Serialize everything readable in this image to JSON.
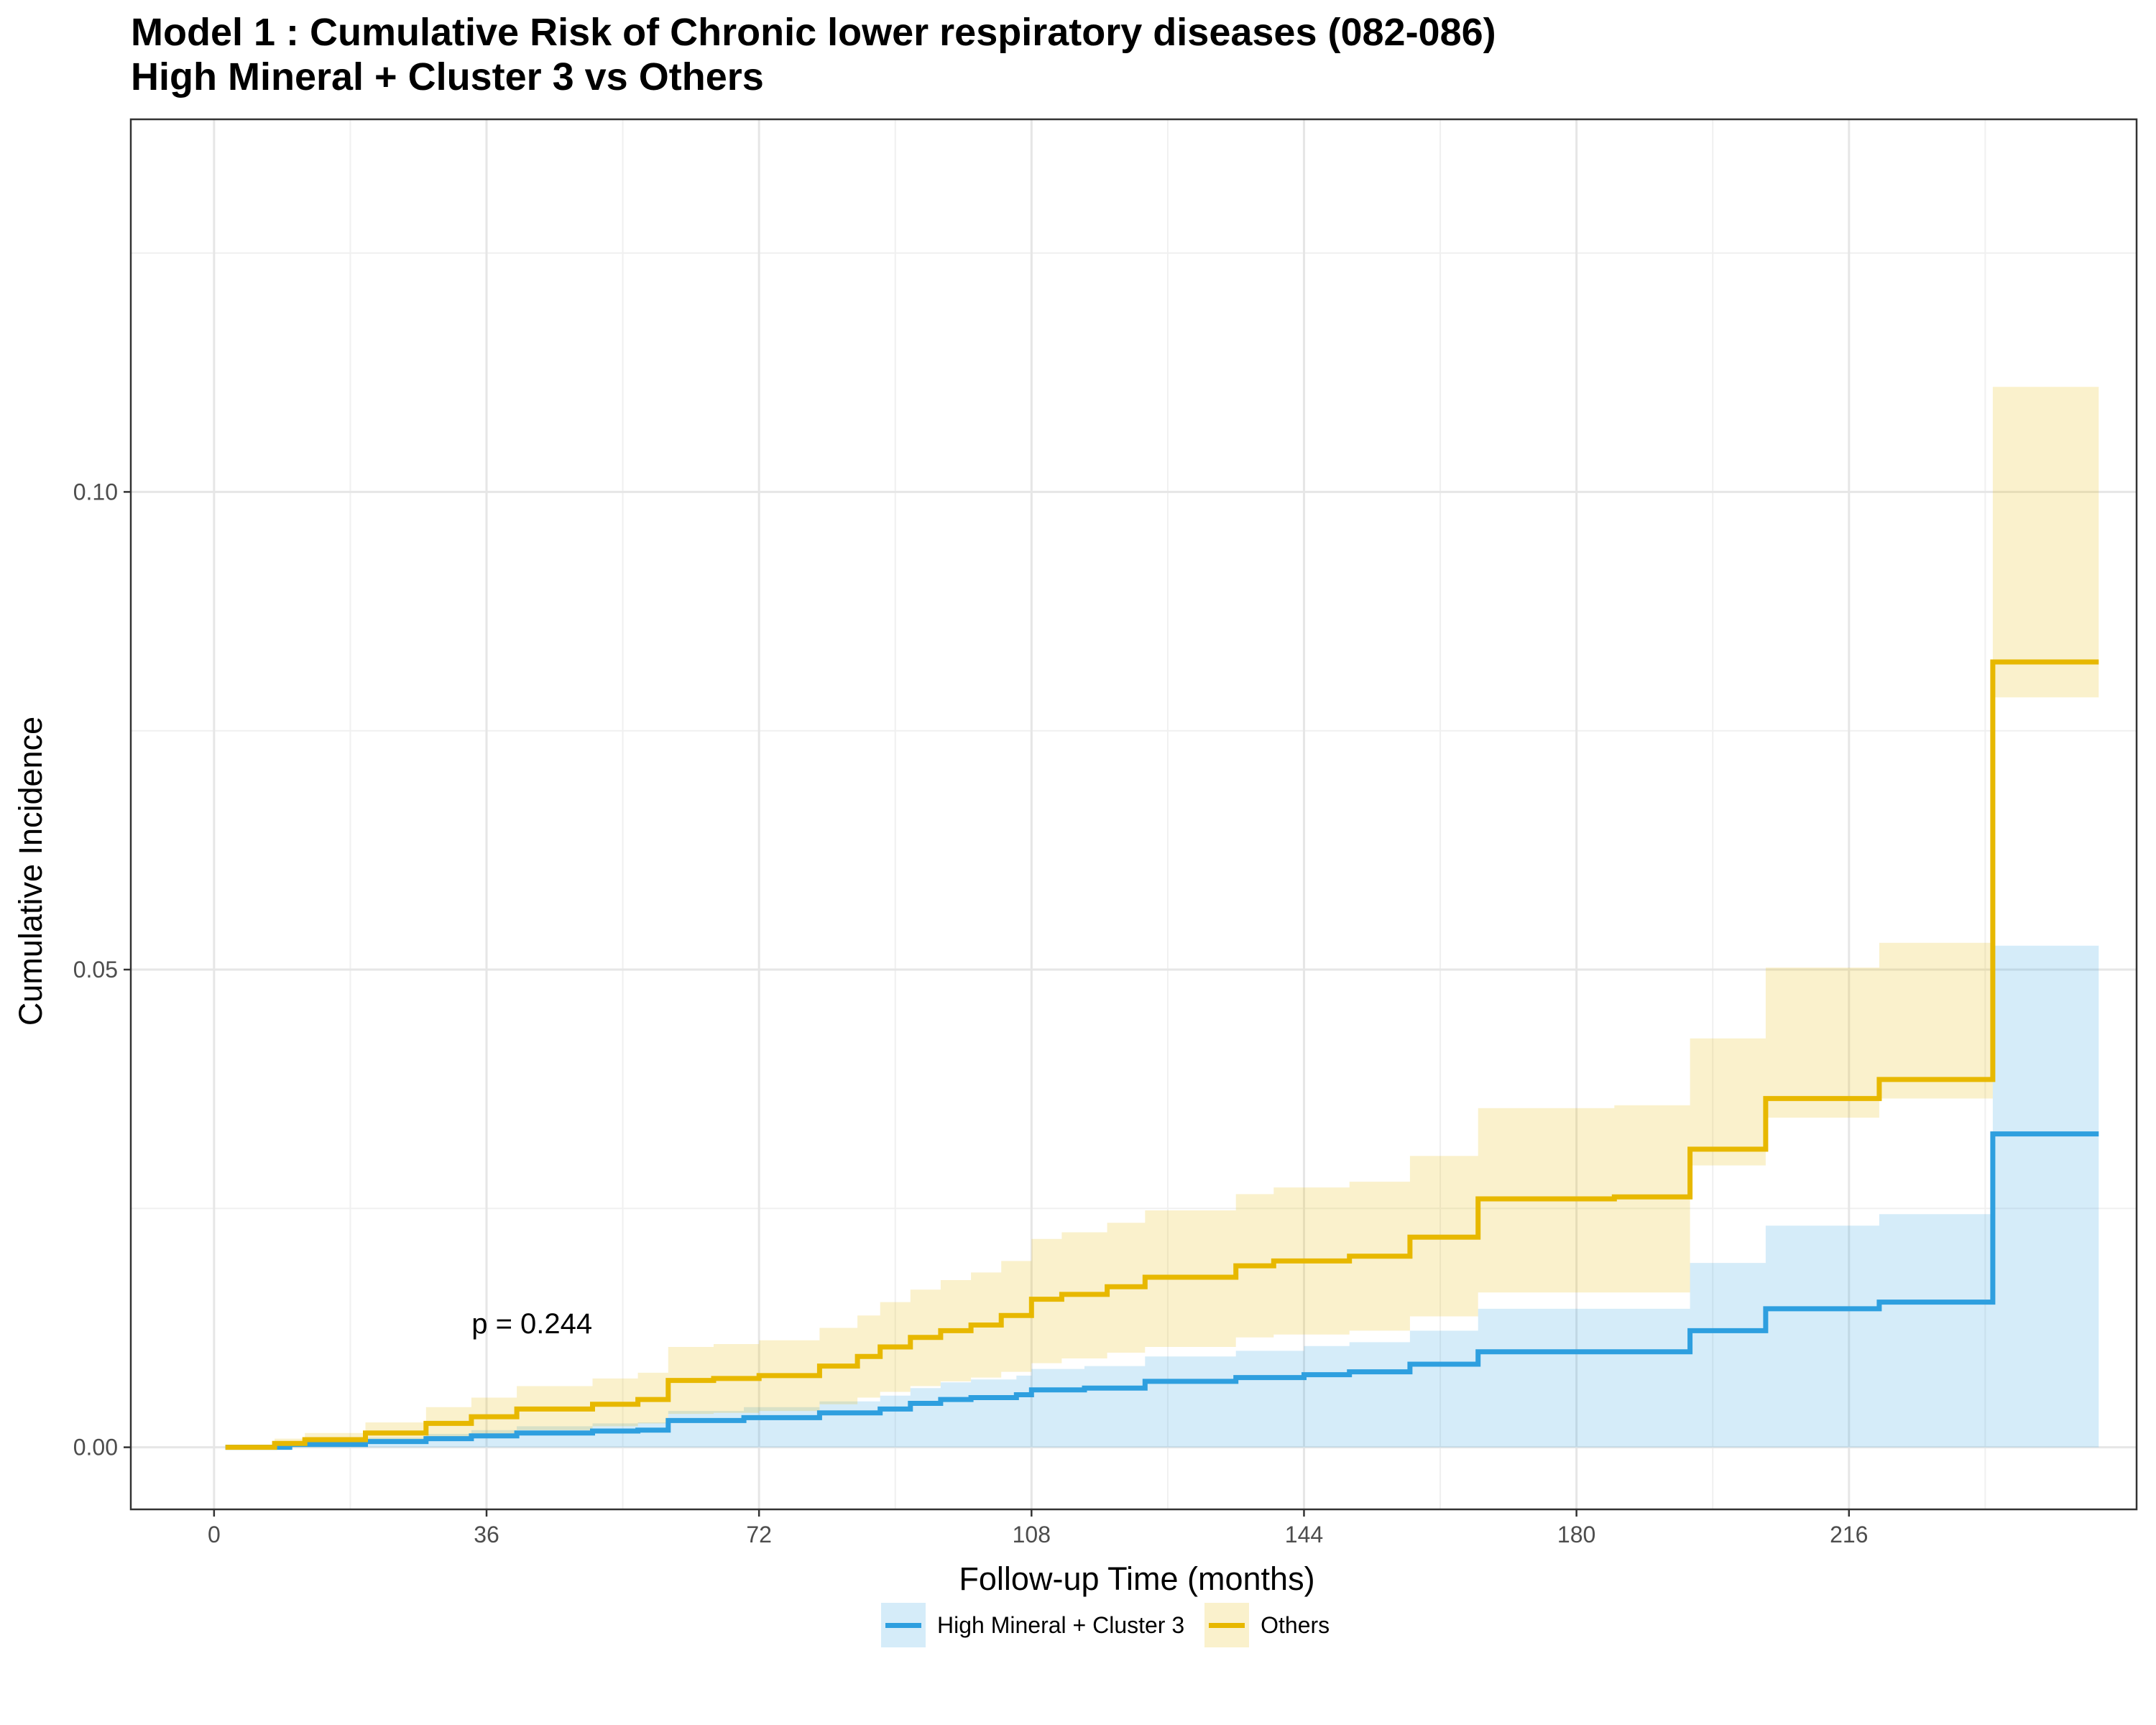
{
  "chart_data": {
    "type": "line",
    "title": "Model 1 : Cumulative Risk of Chronic lower respiratory diseases (082-086)",
    "subtitle": "High Mineral + Cluster 3 vs Others",
    "xlabel": "Follow-up Time (months)",
    "ylabel": "Cumulative Incidence",
    "xlim": [
      -11,
      254
    ],
    "ylim": [
      -0.0065,
      0.139
    ],
    "x_ticks": [
      0,
      36,
      72,
      108,
      144,
      180,
      216
    ],
    "y_ticks": [
      0.0,
      0.05,
      0.1
    ],
    "y_tick_labels": [
      "0.00",
      "0.05",
      "0.10"
    ],
    "grid": true,
    "legend_position": "bottom",
    "annotation": {
      "text": "p = 0.244",
      "x": 42,
      "y": 0.013
    },
    "series": [
      {
        "name": "High Mineral + Cluster 3",
        "color": "#2E9FDF",
        "x": [
          1.5,
          10,
          20,
          28,
          34,
          40,
          50,
          56,
          60,
          70,
          80,
          88,
          92,
          96,
          100,
          106,
          108,
          115,
          123,
          135,
          144,
          150,
          158,
          167,
          175,
          185,
          195,
          205,
          216,
          220,
          235,
          249
        ],
        "y": [
          0.0,
          0.0003,
          0.0006,
          0.0009,
          0.0012,
          0.0015,
          0.0017,
          0.0018,
          0.0028,
          0.0031,
          0.0036,
          0.004,
          0.0046,
          0.005,
          0.0052,
          0.0055,
          0.006,
          0.0062,
          0.0069,
          0.0073,
          0.0076,
          0.0079,
          0.0087,
          0.01,
          0.01,
          0.01,
          0.0122,
          0.0145,
          0.0145,
          0.0152,
          0.0328,
          0.0328
        ],
        "lower": [
          0.0,
          0.0,
          0.0,
          0.0,
          0.0,
          0.0,
          0.0,
          0.0,
          0.0,
          0.0,
          0.0,
          0.0,
          0.0,
          0.0,
          0.0,
          0.0,
          0.0,
          0.0,
          0.0,
          0.0,
          0.0,
          0.0,
          0.0,
          0.0,
          0.0,
          0.0,
          0.0,
          0.0,
          0.0,
          0.0,
          0.0,
          0.0
        ],
        "upper": [
          0.0,
          0.0005,
          0.001,
          0.0014,
          0.0018,
          0.0022,
          0.0025,
          0.0026,
          0.0038,
          0.0042,
          0.0048,
          0.0054,
          0.0062,
          0.0068,
          0.0071,
          0.0075,
          0.0082,
          0.0085,
          0.0095,
          0.0101,
          0.0106,
          0.011,
          0.0122,
          0.0145,
          0.0145,
          0.0145,
          0.0193,
          0.0232,
          0.0232,
          0.0244,
          0.0525,
          0.0525
        ]
      },
      {
        "name": "Others",
        "color": "#E7B800",
        "x": [
          1.5,
          8,
          12,
          20,
          28,
          34,
          40,
          50,
          56,
          60,
          66,
          72,
          80,
          85,
          88,
          92,
          96,
          100,
          104,
          108,
          112,
          118,
          123,
          135,
          140,
          150,
          158,
          167,
          175,
          185,
          195,
          205,
          216,
          220,
          235,
          249
        ],
        "y": [
          0.0,
          0.0004,
          0.0008,
          0.0015,
          0.0025,
          0.0032,
          0.004,
          0.0045,
          0.005,
          0.007,
          0.0072,
          0.0075,
          0.0085,
          0.0095,
          0.0105,
          0.0115,
          0.0122,
          0.0128,
          0.0138,
          0.0155,
          0.016,
          0.0168,
          0.0178,
          0.019,
          0.0195,
          0.02,
          0.022,
          0.026,
          0.026,
          0.0262,
          0.0312,
          0.0365,
          0.0365,
          0.0385,
          0.0822,
          0.0822
        ],
        "lower": [
          0.0,
          0.0001,
          0.0003,
          0.0006,
          0.001,
          0.0014,
          0.0018,
          0.0022,
          0.0025,
          0.0035,
          0.0036,
          0.0038,
          0.0045,
          0.0052,
          0.0058,
          0.0064,
          0.0069,
          0.0073,
          0.0079,
          0.0088,
          0.0093,
          0.0099,
          0.0105,
          0.0115,
          0.0118,
          0.0122,
          0.0137,
          0.0162,
          0.0162,
          0.0162,
          0.0295,
          0.0345,
          0.0345,
          0.0365,
          0.0785,
          0.0785
        ],
        "upper": [
          0.0,
          0.0009,
          0.0015,
          0.0026,
          0.0042,
          0.0052,
          0.0064,
          0.0072,
          0.0078,
          0.0105,
          0.0108,
          0.0112,
          0.0125,
          0.0138,
          0.0152,
          0.0165,
          0.0175,
          0.0183,
          0.0195,
          0.0218,
          0.0225,
          0.0235,
          0.0248,
          0.0265,
          0.0272,
          0.0278,
          0.0305,
          0.0355,
          0.0355,
          0.0358,
          0.0428,
          0.0502,
          0.0502,
          0.0528,
          0.111,
          0.111
        ]
      }
    ]
  }
}
